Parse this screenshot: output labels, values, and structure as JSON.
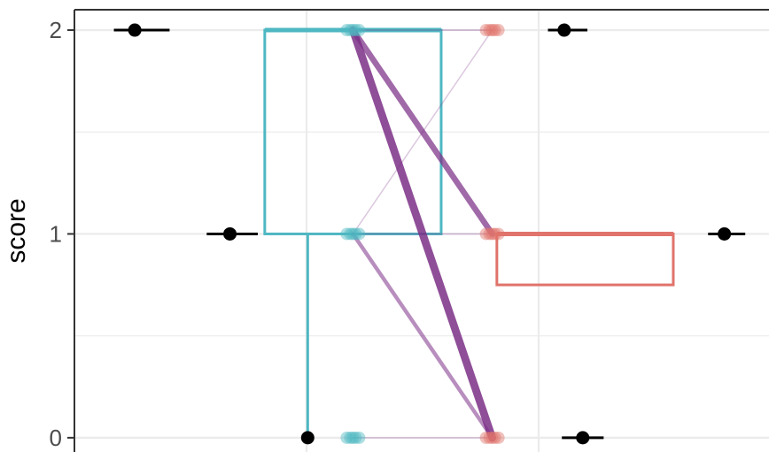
{
  "chart_data": {
    "type": "boxplot-with-paired-lines",
    "ylabel": "score",
    "ylim": [
      -0.07,
      2.1
    ],
    "y_ticks": [
      "0",
      "1",
      "2"
    ],
    "x_range": [
      0.55,
      3.55
    ],
    "grid": true,
    "colors": {
      "teal": "#4eb7c2",
      "salmon": "#e0736b",
      "purple": "#7b2f86",
      "summary": "#000000",
      "grid": "#ebebeb",
      "panel_border": "#333333"
    },
    "groups": [
      {
        "color": "teal",
        "x": 1.75,
        "box": {
          "x_left": 1.37,
          "x_right": 2.13,
          "q1": 1,
          "median": 2,
          "q3": 2
        },
        "whisker": {
          "x": 1.555,
          "from": 0,
          "to": 1
        },
        "points": [
          {
            "y": 0
          },
          {
            "y": 1
          },
          {
            "y": 2
          }
        ]
      },
      {
        "color": "salmon",
        "x": 2.35,
        "box": {
          "x_left": 2.37,
          "x_right": 3.13,
          "q1": 0.75,
          "median": 1,
          "q3": 1
        },
        "points": [
          {
            "y": 0
          },
          {
            "y": 1
          },
          {
            "y": 2
          }
        ]
      }
    ],
    "paired_lines": [
      {
        "from": 2,
        "to": 2,
        "weight": 3
      },
      {
        "from": 2,
        "to": 1,
        "weight": 12
      },
      {
        "from": 2,
        "to": 0,
        "weight": 16
      },
      {
        "from": 1,
        "to": 1,
        "weight": 3
      },
      {
        "from": 1,
        "to": 0,
        "weight": 8
      },
      {
        "from": 1,
        "to": 2,
        "weight": 2
      },
      {
        "from": 0,
        "to": 0,
        "weight": 2
      }
    ],
    "summary_points": [
      {
        "x": 0.81,
        "y": 2,
        "xmin": 0.72,
        "xmax": 0.96
      },
      {
        "x": 1.22,
        "y": 1,
        "xmin": 1.12,
        "xmax": 1.34
      },
      {
        "x": 1.555,
        "y": 0
      },
      {
        "x": 2.66,
        "y": 2,
        "xmin": 2.59,
        "xmax": 2.76
      },
      {
        "x": 2.74,
        "y": 0,
        "xmin": 2.65,
        "xmax": 2.83
      },
      {
        "x": 3.35,
        "y": 1,
        "xmin": 3.28,
        "xmax": 3.44
      }
    ]
  }
}
